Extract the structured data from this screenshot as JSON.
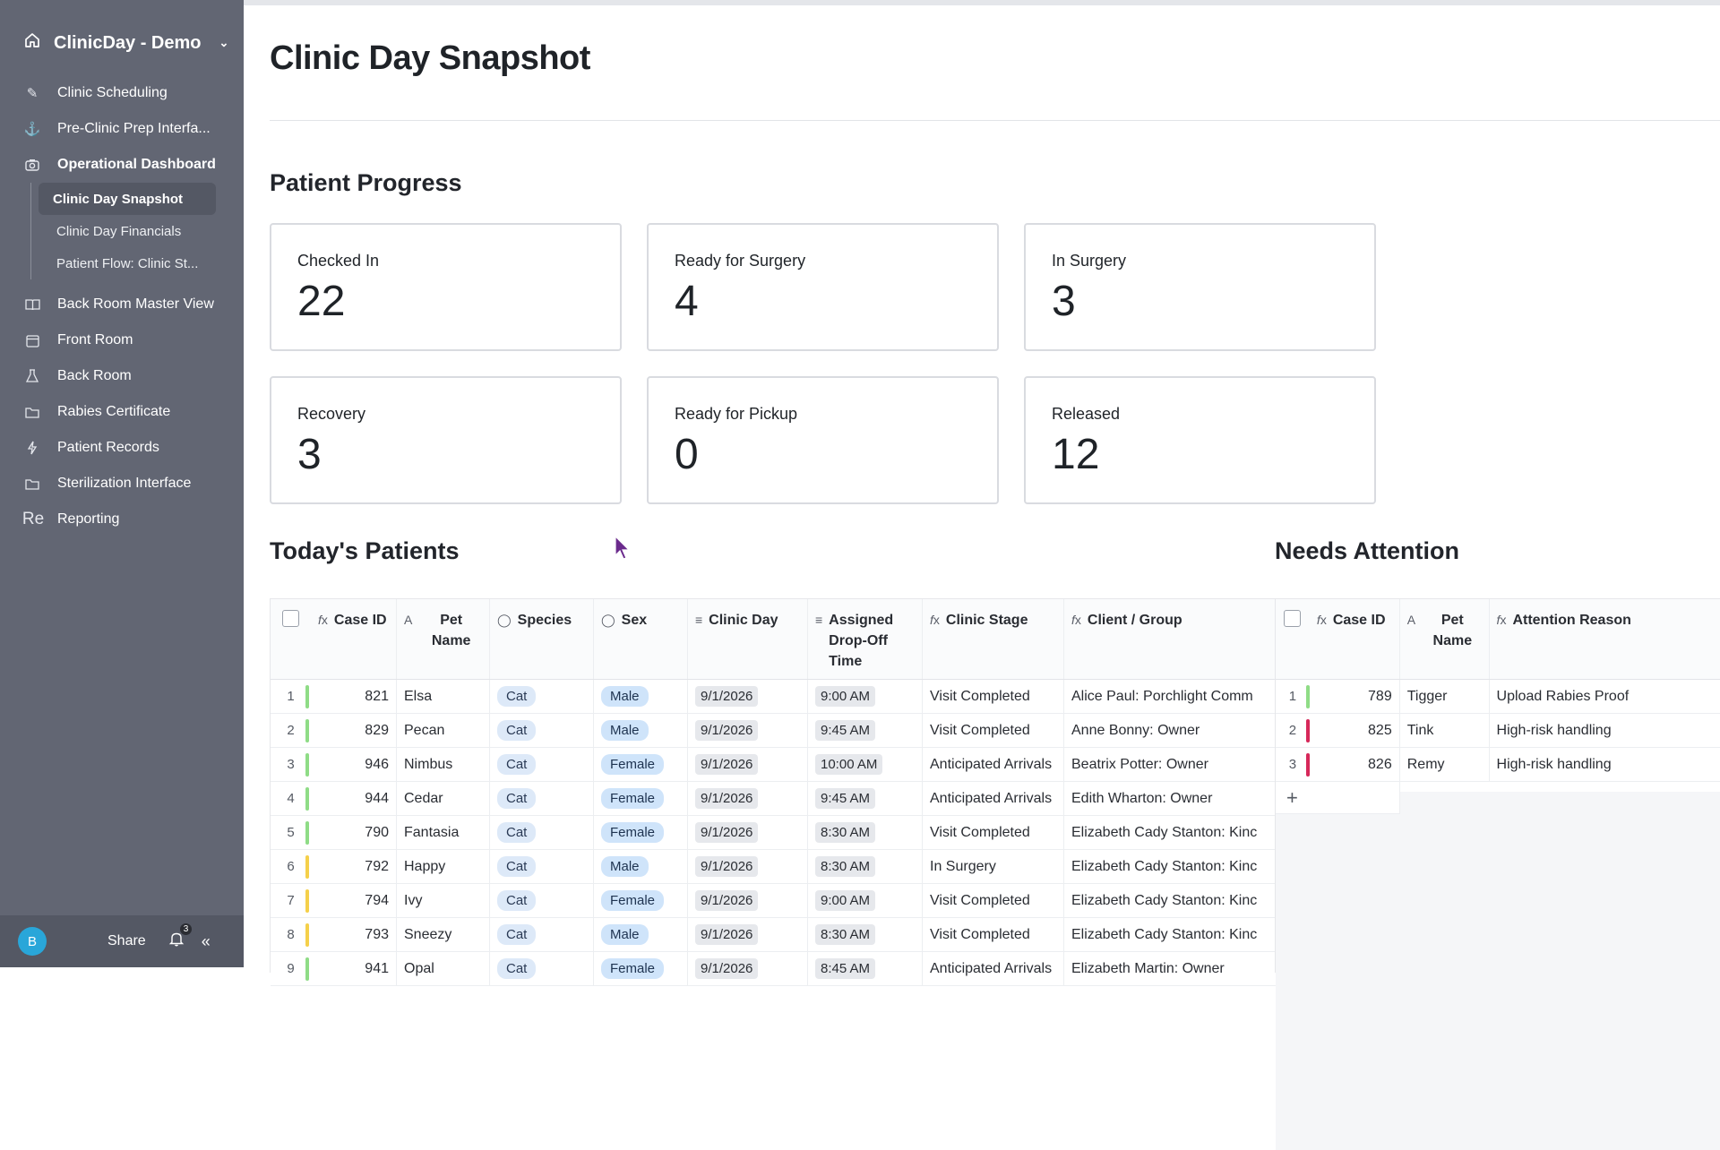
{
  "sidebar": {
    "workspace": "ClinicDay - Demo",
    "items": [
      {
        "label": "Clinic Scheduling",
        "icon": "pencil-icon"
      },
      {
        "label": "Pre-Clinic Prep Interfa...",
        "icon": "anchor-icon"
      },
      {
        "label": "Operational Dashboard",
        "icon": "camera-icon"
      }
    ],
    "subitems": [
      {
        "label": "Clinic Day Snapshot"
      },
      {
        "label": "Clinic Day Financials"
      },
      {
        "label": "Patient Flow: Clinic St..."
      }
    ],
    "items2": [
      {
        "label": "Back Room Master View",
        "icon": "book-icon"
      },
      {
        "label": "Front Room",
        "icon": "calendar-icon"
      },
      {
        "label": "Back Room",
        "icon": "flask-icon"
      },
      {
        "label": "Rabies Certificate",
        "icon": "folder-icon"
      },
      {
        "label": "Patient Records",
        "icon": "bolt-icon"
      },
      {
        "label": "Sterilization Interface",
        "icon": "folder-icon"
      },
      {
        "label": "Reporting",
        "icon": "Re"
      }
    ],
    "footer": {
      "avatar": "B",
      "share": "Share",
      "notifications": "3"
    }
  },
  "main": {
    "title": "Clinic Day Snapshot",
    "progress_title": "Patient Progress",
    "stats": [
      {
        "label": "Checked In",
        "value": "22"
      },
      {
        "label": "Ready for Surgery",
        "value": "4"
      },
      {
        "label": "In Surgery",
        "value": "3"
      },
      {
        "label": "Recovery",
        "value": "3"
      },
      {
        "label": "Ready for Pickup",
        "value": "0"
      },
      {
        "label": "Released",
        "value": "12"
      }
    ],
    "patients_title": "Today's Patients",
    "patients_columns": [
      "Case ID",
      "Pet Name",
      "Species",
      "Sex",
      "Clinic Day",
      "Assigned Drop-Off Time",
      "Clinic Stage",
      "Client / Group"
    ],
    "patients": [
      {
        "n": "1",
        "case": "821",
        "pet": "Elsa",
        "species": "Cat",
        "sex": "Male",
        "day": "9/1/2026",
        "time": "9:00 AM",
        "stage": "Visit Completed",
        "client": "Alice Paul: Porchlight Comm",
        "color": "#8fdc86"
      },
      {
        "n": "2",
        "case": "829",
        "pet": "Pecan",
        "species": "Cat",
        "sex": "Male",
        "day": "9/1/2026",
        "time": "9:45 AM",
        "stage": "Visit Completed",
        "client": "Anne Bonny: Owner",
        "color": "#8fdc86"
      },
      {
        "n": "3",
        "case": "946",
        "pet": "Nimbus",
        "species": "Cat",
        "sex": "Female",
        "day": "9/1/2026",
        "time": "10:00 AM",
        "stage": "Anticipated Arrivals",
        "client": "Beatrix Potter: Owner",
        "color": "#8fdc86"
      },
      {
        "n": "4",
        "case": "944",
        "pet": "Cedar",
        "species": "Cat",
        "sex": "Female",
        "day": "9/1/2026",
        "time": "9:45 AM",
        "stage": "Anticipated Arrivals",
        "client": "Edith Wharton: Owner",
        "color": "#8fdc86"
      },
      {
        "n": "5",
        "case": "790",
        "pet": "Fantasia",
        "species": "Cat",
        "sex": "Female",
        "day": "9/1/2026",
        "time": "8:30 AM",
        "stage": "Visit Completed",
        "client": "Elizabeth Cady Stanton: Kinc",
        "color": "#8fdc86"
      },
      {
        "n": "6",
        "case": "792",
        "pet": "Happy",
        "species": "Cat",
        "sex": "Male",
        "day": "9/1/2026",
        "time": "8:30 AM",
        "stage": "In Surgery",
        "client": "Elizabeth Cady Stanton: Kinc",
        "color": "#f5d04a"
      },
      {
        "n": "7",
        "case": "794",
        "pet": "Ivy",
        "species": "Cat",
        "sex": "Female",
        "day": "9/1/2026",
        "time": "9:00 AM",
        "stage": "Visit Completed",
        "client": "Elizabeth Cady Stanton: Kinc",
        "color": "#f5d04a"
      },
      {
        "n": "8",
        "case": "793",
        "pet": "Sneezy",
        "species": "Cat",
        "sex": "Male",
        "day": "9/1/2026",
        "time": "8:30 AM",
        "stage": "Visit Completed",
        "client": "Elizabeth Cady Stanton: Kinc",
        "color": "#f5d04a"
      },
      {
        "n": "9",
        "case": "941",
        "pet": "Opal",
        "species": "Cat",
        "sex": "Female",
        "day": "9/1/2026",
        "time": "8:45 AM",
        "stage": "Anticipated Arrivals",
        "client": "Elizabeth Martin: Owner",
        "color": "#8fdc86"
      }
    ],
    "attention_title": "Needs Attention",
    "attention_columns": [
      "Case ID",
      "Pet Name",
      "Attention Reason"
    ],
    "attention": [
      {
        "n": "1",
        "case": "789",
        "pet": "Tigger",
        "reason": "Upload Rabies Proof",
        "color": "#8fdc86"
      },
      {
        "n": "2",
        "case": "825",
        "pet": "Tink",
        "reason": "High-risk handling",
        "color": "#d6285a"
      },
      {
        "n": "3",
        "case": "826",
        "pet": "Remy",
        "reason": "High-risk handling",
        "color": "#d6285a"
      }
    ]
  }
}
